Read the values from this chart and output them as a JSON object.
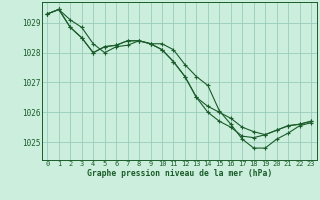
{
  "title": "Graphe pression niveau de la mer (hPa)",
  "background_color": "#cceedd",
  "grid_color": "#99ccbb",
  "line_color": "#1a5c2a",
  "marker_color": "#1a5c2a",
  "xlim": [
    -0.5,
    23.5
  ],
  "ylim": [
    1024.4,
    1029.7
  ],
  "yticks": [
    1025,
    1026,
    1027,
    1028,
    1029
  ],
  "xticks": [
    0,
    1,
    2,
    3,
    4,
    5,
    6,
    7,
    8,
    9,
    10,
    11,
    12,
    13,
    14,
    15,
    16,
    17,
    18,
    19,
    20,
    21,
    22,
    23
  ],
  "series": [
    [
      1029.3,
      1029.45,
      1029.1,
      1028.85,
      1028.3,
      1028.0,
      1028.2,
      1028.25,
      1028.4,
      1028.3,
      1028.3,
      1028.1,
      1027.6,
      1027.2,
      1026.9,
      1026.05,
      1025.6,
      1025.1,
      1024.8,
      1024.8,
      1025.1,
      1025.3,
      1025.55,
      1025.65
    ],
    [
      1029.3,
      1029.45,
      1028.85,
      1028.5,
      1028.0,
      1028.2,
      1028.25,
      1028.4,
      1028.4,
      1028.3,
      1028.1,
      1027.7,
      1027.2,
      1026.5,
      1026.0,
      1025.7,
      1025.5,
      1025.2,
      1025.15,
      1025.25,
      1025.4,
      1025.55,
      1025.6,
      1025.7
    ],
    [
      1029.3,
      1029.45,
      1028.85,
      1028.5,
      1028.0,
      1028.2,
      1028.25,
      1028.4,
      1028.4,
      1028.3,
      1028.1,
      1027.7,
      1027.2,
      1026.5,
      1026.2,
      1026.0,
      1025.8,
      1025.5,
      1025.35,
      1025.25,
      1025.4,
      1025.55,
      1025.6,
      1025.7
    ]
  ]
}
